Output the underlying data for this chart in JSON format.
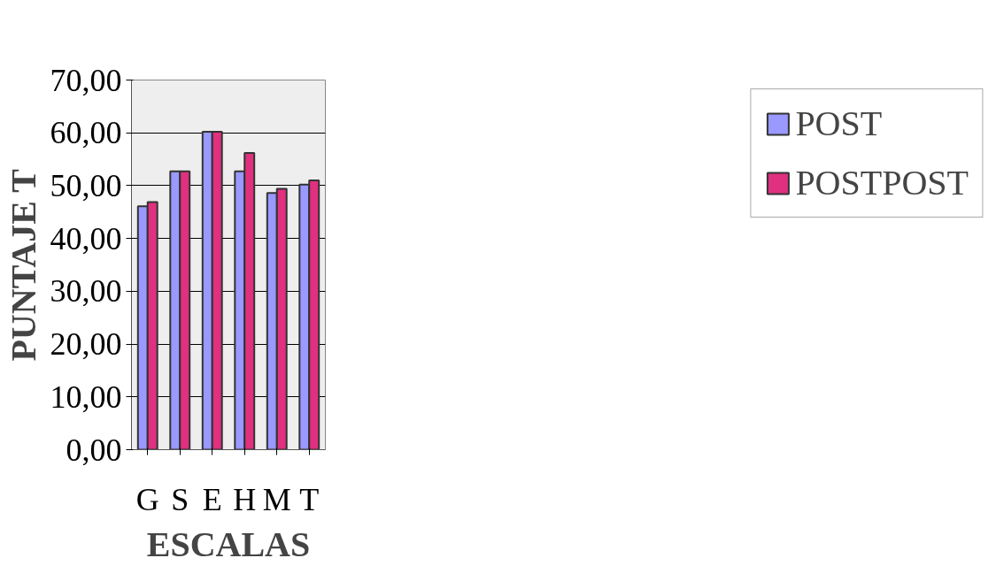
{
  "chart_data": {
    "type": "bar",
    "xlabel": "ESCALAS",
    "ylabel": "PUNTAJE T",
    "categories": [
      "G",
      "S",
      "E",
      "H",
      "M",
      "T"
    ],
    "series": [
      {
        "name": "POST",
        "color": "#9999ff",
        "values": [
          46.1,
          52.7,
          60.2,
          52.7,
          48.6,
          50.2
        ]
      },
      {
        "name": "POSTPOST",
        "color": "#e0307f",
        "values": [
          46.9,
          52.7,
          60.2,
          56.2,
          49.4,
          51.0
        ]
      }
    ],
    "ylim": [
      0,
      70
    ],
    "yticks": [
      {
        "value": 0,
        "label": "0,00"
      },
      {
        "value": 10,
        "label": "10,00"
      },
      {
        "value": 20,
        "label": "20,00"
      },
      {
        "value": 30,
        "label": "30,00"
      },
      {
        "value": 40,
        "label": "40,00"
      },
      {
        "value": 50,
        "label": "50,00"
      },
      {
        "value": 60,
        "label": "60,00"
      },
      {
        "value": 70,
        "label": "70,00"
      }
    ],
    "grid": "y",
    "legend": "right"
  }
}
